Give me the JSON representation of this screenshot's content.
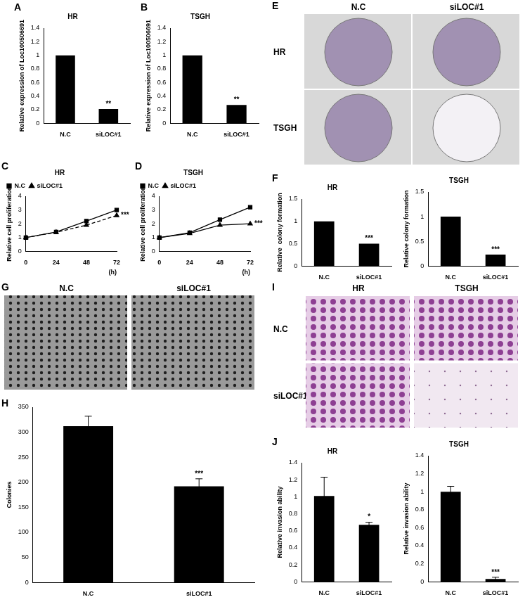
{
  "chart_data": [
    {
      "panel": "A",
      "type": "bar",
      "title": "HR",
      "y_label": "Relative expression of Loc100506691",
      "categories": [
        "N.C",
        "siLOC#1"
      ],
      "values": [
        1,
        0.21
      ],
      "significance": [
        null,
        "**"
      ],
      "color": "#000000",
      "ylim": [
        0,
        1.4
      ],
      "yticks": [
        0,
        0.2,
        0.4,
        0.6,
        0.8,
        1,
        1.2,
        1.4
      ]
    },
    {
      "panel": "B",
      "type": "bar",
      "title": "TSGH",
      "y_label": "Relative expression of Loc100506691",
      "categories": [
        "N.C",
        "siLOC#1"
      ],
      "values": [
        1,
        0.27
      ],
      "significance": [
        null,
        "**"
      ],
      "color": "#000000",
      "ylim": [
        0,
        1.4
      ],
      "yticks": [
        0,
        0.2,
        0.4,
        0.6,
        0.8,
        1,
        1.2,
        1.4
      ]
    },
    {
      "panel": "C",
      "type": "line",
      "title": "HR",
      "y_label": "Relative cell proliferation",
      "x_label": "(h)",
      "categories": [
        "0",
        "24",
        "48",
        "72"
      ],
      "series": [
        {
          "name": "N.C",
          "color": "#000000",
          "values": [
            1,
            1.4,
            2.2,
            3.0
          ],
          "marker": "square",
          "line_style": "solid"
        },
        {
          "name": "siLOC#1",
          "color": "#000000",
          "values": [
            1,
            1.38,
            1.9,
            2.6
          ],
          "marker": "triangle",
          "line_style": "dashed"
        }
      ],
      "annotation": "***",
      "ylim": [
        0,
        4
      ],
      "yticks": [
        0,
        1,
        2,
        3,
        4
      ],
      "legend": "top-left"
    },
    {
      "panel": "D",
      "type": "line",
      "title": "TSGH",
      "y_label": "Relative cell proliferation",
      "x_label": "(h)",
      "categories": [
        "0",
        "24",
        "48",
        "72"
      ],
      "series": [
        {
          "name": "N.C",
          "color": "#000000",
          "values": [
            1,
            1.35,
            2.3,
            3.2
          ],
          "marker": "square",
          "line_style": "solid"
        },
        {
          "name": "siLOC#1",
          "color": "#000000",
          "values": [
            1,
            1.3,
            1.9,
            2.0
          ],
          "marker": "triangle",
          "line_style": "solid"
        }
      ],
      "annotation": "***",
      "ylim": [
        0,
        4
      ],
      "yticks": [
        0,
        1,
        2,
        3,
        4
      ],
      "legend": "top-left"
    },
    {
      "panel": "F",
      "type": "bar",
      "title": "HR",
      "y_label": "Relative  colony formation",
      "categories": [
        "N.C",
        "siLOC#1"
      ],
      "values": [
        1,
        0.5
      ],
      "significance": [
        null,
        "***"
      ],
      "color": "#000000",
      "ylim": [
        0,
        1.5
      ],
      "yticks": [
        0,
        0.5,
        1,
        1.5
      ]
    },
    {
      "type": "bar",
      "title": "TSGH",
      "y_label": "Relative colony formation",
      "categories": [
        "N.C",
        "siLOC#1"
      ],
      "values": [
        1,
        0.23
      ],
      "significance": [
        null,
        "***"
      ],
      "color": "#000000",
      "ylim": [
        0,
        1.5
      ],
      "yticks": [
        0,
        0.5,
        1,
        1.5
      ]
    },
    {
      "panel": "H",
      "type": "bar",
      "y_label": "Colonies",
      "categories": [
        "N.C",
        "siLOC#1"
      ],
      "values": [
        312,
        192
      ],
      "errors": [
        20,
        15
      ],
      "significance": [
        null,
        "***"
      ],
      "color": "#000000",
      "ylim": [
        0,
        350
      ],
      "yticks": [
        0,
        50,
        100,
        150,
        200,
        250,
        300,
        350
      ]
    },
    {
      "panel": "J",
      "type": "bar",
      "title": "HR",
      "y_label": "Relative invasion ability",
      "categories": [
        "N.C",
        "siLOC#1"
      ],
      "values": [
        1.01,
        0.67
      ],
      "errors": [
        0.22,
        0.03
      ],
      "significance": [
        null,
        "*"
      ],
      "color": "#000000",
      "ylim": [
        0,
        1.4
      ],
      "yticks": [
        0,
        0.2,
        0.4,
        0.6,
        0.8,
        1,
        1.2,
        1.4
      ]
    },
    {
      "type": "bar",
      "title": "TSGH",
      "y_label": "Relative invasion ability",
      "categories": [
        "N.C",
        "siLOC#1"
      ],
      "values": [
        1,
        0.03
      ],
      "errors": [
        0.06,
        0.02
      ],
      "significance": [
        null,
        "***"
      ],
      "color": "#000000",
      "ylim": [
        0,
        1.4
      ],
      "yticks": [
        0,
        0.2,
        0.4,
        0.6,
        0.8,
        1,
        1.2,
        1.4
      ]
    }
  ],
  "images": [
    {
      "panel": "E",
      "columns": [
        "N.C",
        "siLOC#1"
      ],
      "rows": [
        "HR",
        "TSGH"
      ]
    },
    {
      "panel": "G",
      "columns": [
        "N.C",
        "siLOC#1"
      ]
    },
    {
      "panel": "I",
      "columns": [
        "HR",
        "TSGH"
      ],
      "rows": [
        "N.C",
        "siLOC#1"
      ]
    }
  ]
}
